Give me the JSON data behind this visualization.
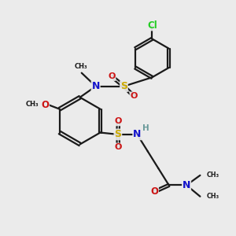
{
  "background_color": "#ebebeb",
  "bond_color": "#1a1a1a",
  "bond_width": 1.6,
  "atom_colors": {
    "C": "#1a1a1a",
    "N": "#1414cc",
    "O": "#cc1414",
    "S": "#ccaa00",
    "Cl": "#22cc22",
    "H": "#6a9a9a"
  },
  "figsize": [
    3.0,
    3.0
  ],
  "dpi": 100,
  "xlim": [
    0,
    10
  ],
  "ylim": [
    0,
    10
  ]
}
